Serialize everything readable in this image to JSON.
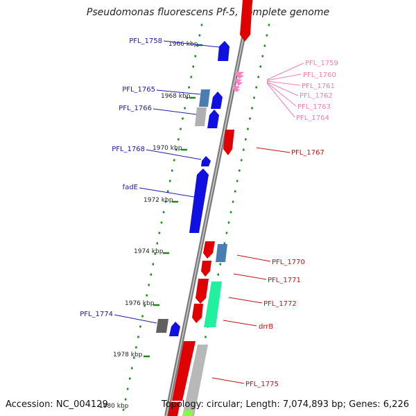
{
  "title": "Pseudomonas fluorescens Pf-5, complete genome",
  "footer": {
    "accession": "Accession: NC_004129",
    "topology": "Topology: circular; Length: 7,074,893 bp; Genes: 6,226"
  },
  "colors": {
    "backbone": "#7a7a7a",
    "tick": "#1a8a1a",
    "label_blue": "#1a1aa8",
    "label_red": "#c01010",
    "label_pink": "#f080b0"
  },
  "kbp_markers": [
    "1966 kbp",
    "1968 kbp",
    "1970 kbp",
    "1972 kbp",
    "1974 kbp",
    "1976 kbp",
    "1978 kbp",
    "1980 kbp"
  ],
  "genes_left": [
    {
      "name": "PFL_1758"
    },
    {
      "name": "PFL_1765"
    },
    {
      "name": "PFL_1766"
    },
    {
      "name": "PFL_1768"
    },
    {
      "name": "fadE"
    },
    {
      "name": "PFL_1774"
    }
  ],
  "genes_right_red": [
    {
      "name": "PFL_1767"
    },
    {
      "name": "PFL_1770"
    },
    {
      "name": "PFL_1771"
    },
    {
      "name": "PFL_1772"
    },
    {
      "name": "drrB"
    },
    {
      "name": "PFL_1775"
    }
  ],
  "genes_right_pink": [
    {
      "name": "PFL_1759"
    },
    {
      "name": "PFL_1760"
    },
    {
      "name": "PFL_1761"
    },
    {
      "name": "PFL_1762"
    },
    {
      "name": "PFL_1763"
    },
    {
      "name": "PFL_1764"
    }
  ]
}
